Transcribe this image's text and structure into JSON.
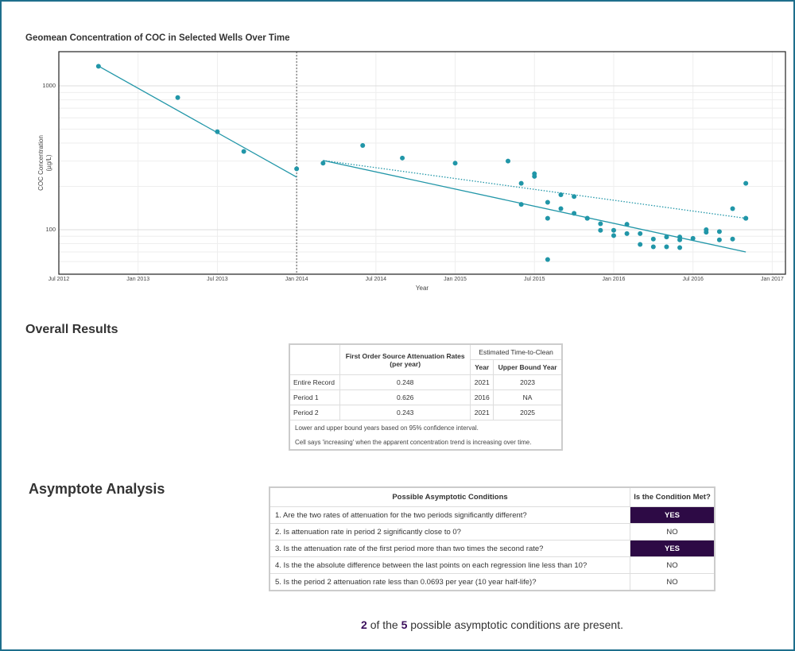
{
  "chart_data": {
    "type": "scatter",
    "title": "Geomean Concentration of COC in Selected Wells Over Time",
    "xlabel": "Year",
    "ylabel": [
      "COC Concentration",
      "(µg/L)"
    ],
    "color": "#2196a8",
    "log_scale": true,
    "grid": true,
    "xlim": [
      "2012-07",
      "2017-02"
    ],
    "xticks": [
      {
        "value": "2012-07",
        "label": "Jul 2012"
      },
      {
        "value": "2013-01",
        "label": "Jan 2013"
      },
      {
        "value": "2013-07",
        "label": "Jul 2013"
      },
      {
        "value": "2014-01",
        "label": "Jan 2014"
      },
      {
        "value": "2014-07",
        "label": "Jul 2014"
      },
      {
        "value": "2015-01",
        "label": "Jan 2015"
      },
      {
        "value": "2015-07",
        "label": "Jul 2015"
      },
      {
        "value": "2016-01",
        "label": "Jan 2016"
      },
      {
        "value": "2016-07",
        "label": "Jul 2016"
      },
      {
        "value": "2017-01",
        "label": "Jan 2017"
      }
    ],
    "ylim": [
      49,
      1730
    ],
    "yticks": [
      100,
      1000
    ],
    "minor_yticks": [
      50,
      60,
      70,
      80,
      90,
      200,
      300,
      400,
      500,
      600,
      700,
      800,
      900
    ],
    "x": [
      "2012-10",
      "2013-04",
      "2013-07",
      "2013-09",
      "2014-01",
      "2014-03",
      "2014-06",
      "2014-09",
      "2015-01",
      "2015-05",
      "2015-06",
      "2015-06",
      "2015-07",
      "2015-07",
      "2015-08",
      "2015-08",
      "2015-08",
      "2015-09",
      "2015-09",
      "2015-10",
      "2015-10",
      "2015-11",
      "2015-11",
      "2015-12",
      "2015-12",
      "2016-01",
      "2016-01",
      "2016-02",
      "2016-02",
      "2016-03",
      "2016-03",
      "2016-04",
      "2016-04",
      "2016-05",
      "2016-05",
      "2016-06",
      "2016-06",
      "2016-06",
      "2016-07",
      "2016-08",
      "2016-08",
      "2016-09",
      "2016-09",
      "2016-10",
      "2016-10",
      "2016-11",
      "2016-11",
      "2016-11"
    ],
    "values": [
      1370,
      830,
      480,
      350,
      265,
      290,
      385,
      315,
      290,
      300,
      210,
      150,
      245,
      235,
      62,
      155,
      120,
      140,
      175,
      130,
      170,
      120,
      120,
      110,
      99,
      91,
      99,
      109,
      94,
      79,
      94,
      76,
      86,
      76,
      89,
      85,
      89,
      75,
      87,
      100,
      96,
      85,
      97,
      86,
      140,
      210,
      120,
      120
    ],
    "lines": [
      {
        "x": [
          "2012-10",
          "2014-01"
        ],
        "values": [
          1374,
          232
        ],
        "style": "solid"
      },
      {
        "x": [
          "2014-03",
          "2016-11"
        ],
        "values": [
          303,
          70
        ],
        "style": "solid"
      },
      {
        "x": [
          "2014-03",
          "2016-11"
        ],
        "values": [
          303,
          120
        ],
        "style": "dotted"
      }
    ],
    "break": "2014-01"
  },
  "results": {
    "heading": "Overall Results",
    "rate_header": [
      "First Order Source Attenuation Rates",
      "(per year)"
    ],
    "ttc_header": "Estimated Time-to-Clean",
    "year_header": "Year",
    "upper_header": "Upper Bound Year",
    "rows": [
      [
        "Entire Record",
        "0.248",
        "2021",
        "2023"
      ],
      [
        "Period 1",
        "0.626",
        "2016",
        "NA"
      ],
      [
        "Period 2",
        "0.243",
        "2021",
        "2025"
      ]
    ],
    "notes": [
      "Lower and upper bound years based on 95% confidence interval.",
      "Cell says 'increasing' when the apparent concentration trend is increasing over time."
    ]
  },
  "asymptote": {
    "heading": "Asymptote Analysis",
    "columns": [
      "Possible Asymptotic Conditions",
      "Is the Condition Met?"
    ],
    "highlight_color": "#2d0a45",
    "rows": [
      {
        "condition": "1. Are the two rates of attenuation for the two periods significantly different?",
        "answer": "YES",
        "met": true
      },
      {
        "condition": "2. Is attenuation rate in period 2 significantly close to 0?",
        "answer": "NO",
        "met": false
      },
      {
        "condition": "3. Is the attenuation rate of the first period more than two times the second rate?",
        "answer": "YES",
        "met": true
      },
      {
        "condition": "4. Is the the absolute difference between the last points on each regression line less than 10?",
        "answer": "NO",
        "met": false
      },
      {
        "condition": "5. Is the period 2 attenuation rate less than 0.0693 per year (10 year half-life)?",
        "answer": "NO",
        "met": false
      }
    ],
    "summary": {
      "present": "2",
      "of": "of the",
      "total": "5",
      "rest": "possible asymptotic conditions are present."
    }
  }
}
